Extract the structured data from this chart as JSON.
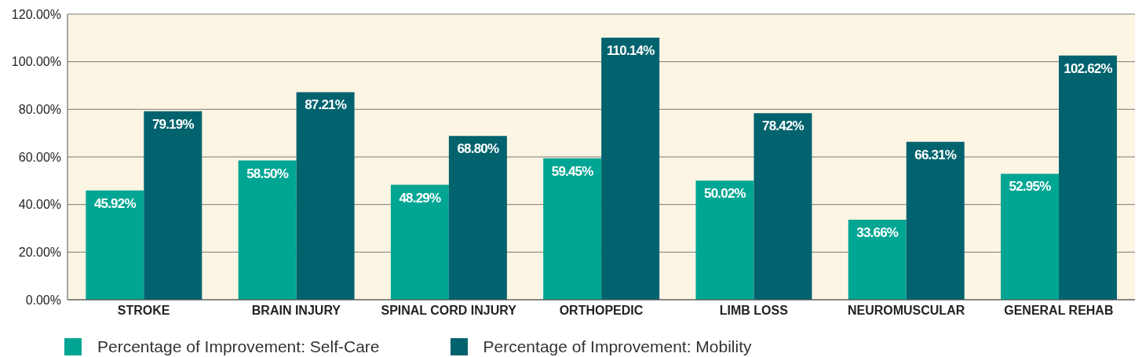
{
  "chart_data": {
    "type": "bar",
    "categories": [
      "STROKE",
      "BRAIN INJURY",
      "SPINAL CORD INJURY",
      "ORTHOPEDIC",
      "LIMB LOSS",
      "NEUROMUSCULAR",
      "GENERAL REHAB"
    ],
    "series": [
      {
        "name": "Percentage of Improvement: Self-Care",
        "color": "#00a693",
        "values": [
          45.92,
          58.5,
          48.29,
          59.45,
          50.02,
          33.66,
          52.95
        ],
        "value_labels": [
          "45.92%",
          "58.50%",
          "48.29%",
          "59.45%",
          "50.02%",
          "33.66%",
          "52.95%"
        ]
      },
      {
        "name": "Percentage of Improvement: Mobility",
        "color": "#02636e",
        "values": [
          79.19,
          87.21,
          68.8,
          110.14,
          78.42,
          66.31,
          102.62
        ],
        "value_labels": [
          "79.19%",
          "87.21%",
          "68.80%",
          "110.14%",
          "78.42%",
          "66.31%",
          "102.62%"
        ]
      }
    ],
    "ylim": [
      0,
      120
    ],
    "yticks": [
      {
        "value": 0,
        "label": "0.00%"
      },
      {
        "value": 20,
        "label": "20.00%"
      },
      {
        "value": 40,
        "label": "40.00%"
      },
      {
        "value": 60,
        "label": "60.00%"
      },
      {
        "value": 80,
        "label": "80.00%"
      },
      {
        "value": 100,
        "label": "100.00%"
      },
      {
        "value": 120,
        "label": "120.00%"
      }
    ],
    "grid": "y",
    "legend": "bottom"
  }
}
